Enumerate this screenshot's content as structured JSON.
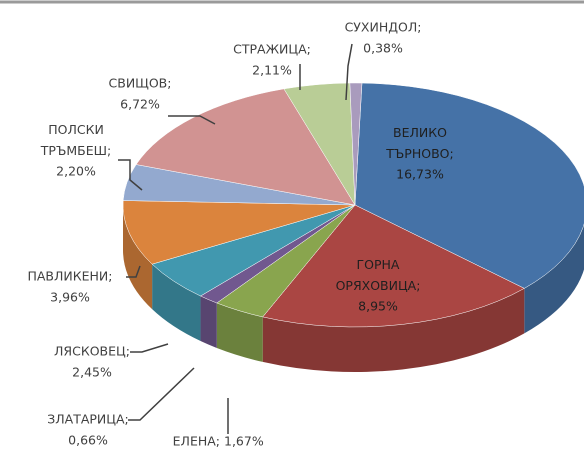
{
  "chart_data": {
    "type": "pie3d",
    "categories": [
      "ВЕЛИКО ТЪРНОВО;",
      "ГОРНА ОРЯХОВИЦА;",
      "ЕЛЕНА;",
      "ЗЛАТАРИЦА;",
      "ЛЯСКОВЕЦ;",
      "ПАВЛИКЕНИ;",
      "ПОЛСКИ ТРЪМБЕШ;",
      "СВИЩОВ;",
      "СТРАЖИЦА;",
      "СУХИНДОЛ;"
    ],
    "values": [
      16.73,
      8.95,
      1.67,
      0.66,
      2.45,
      3.96,
      2.2,
      6.72,
      2.11,
      0.38
    ],
    "value_labels": [
      "16,73%",
      "8,95%",
      "1,67%",
      "0,66%",
      "2,45%",
      "3,96%",
      "2,20%",
      "6,72%",
      "2,11%",
      "0,38%"
    ],
    "colors": [
      "#4572a7",
      "#aa4643",
      "#89a54e",
      "#71588f",
      "#4198af",
      "#db843d",
      "#93a9cf",
      "#d19392",
      "#b9cd96",
      "#a99bbd"
    ]
  }
}
